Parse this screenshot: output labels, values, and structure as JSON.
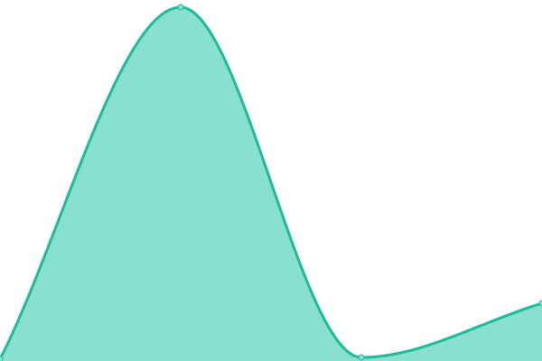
{
  "chart_data": {
    "type": "area",
    "x": [
      0,
      1,
      2,
      3
    ],
    "values": [
      0.5,
      98,
      1,
      16
    ],
    "ylim": [
      0,
      100
    ],
    "xlim": [
      0,
      3
    ],
    "smoothing": "monotone",
    "grid": false,
    "axes_visible": false,
    "markers": true,
    "colors": {
      "line": "#1dbb97",
      "fill": "#89e0cf",
      "marker_fill": "#8de0cf"
    }
  }
}
